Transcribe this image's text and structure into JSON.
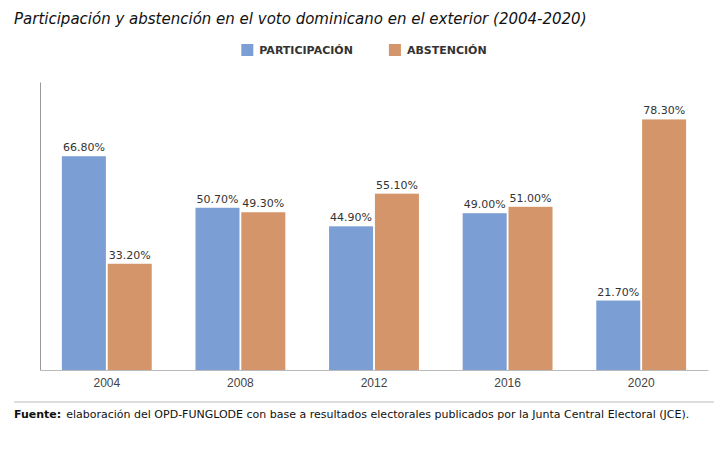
{
  "chart_data": {
    "type": "bar",
    "title": "Participación y abstención en el voto dominicano en el exterior (2004-2020)",
    "categories": [
      "2004",
      "2008",
      "2012",
      "2016",
      "2020"
    ],
    "series": [
      {
        "name": "PARTICIPACIÓN",
        "color": "#7b9fd4",
        "values": [
          66.8,
          50.7,
          44.9,
          49.0,
          21.7
        ],
        "value_labels": [
          "66.80%",
          "50.70%",
          "44.90%",
          "49.00%",
          "21.70%"
        ]
      },
      {
        "name": "ABSTENCIÓN",
        "color": "#d4956a",
        "values": [
          33.2,
          49.3,
          55.1,
          51.0,
          78.3
        ],
        "value_labels": [
          "33.20%",
          "49.30%",
          "55.10%",
          "51.00%",
          "78.30%"
        ]
      }
    ],
    "ylim": [
      0,
      90
    ],
    "yticks": [],
    "grid": false,
    "legend": "top",
    "data_labels": true,
    "tick_labels": "x",
    "annotations": [
      "Fuente:",
      "elaboración del OPD-FUNGLODE con base a resultados electorales publicados por la Junta Central Electoral (JCE)."
    ]
  }
}
